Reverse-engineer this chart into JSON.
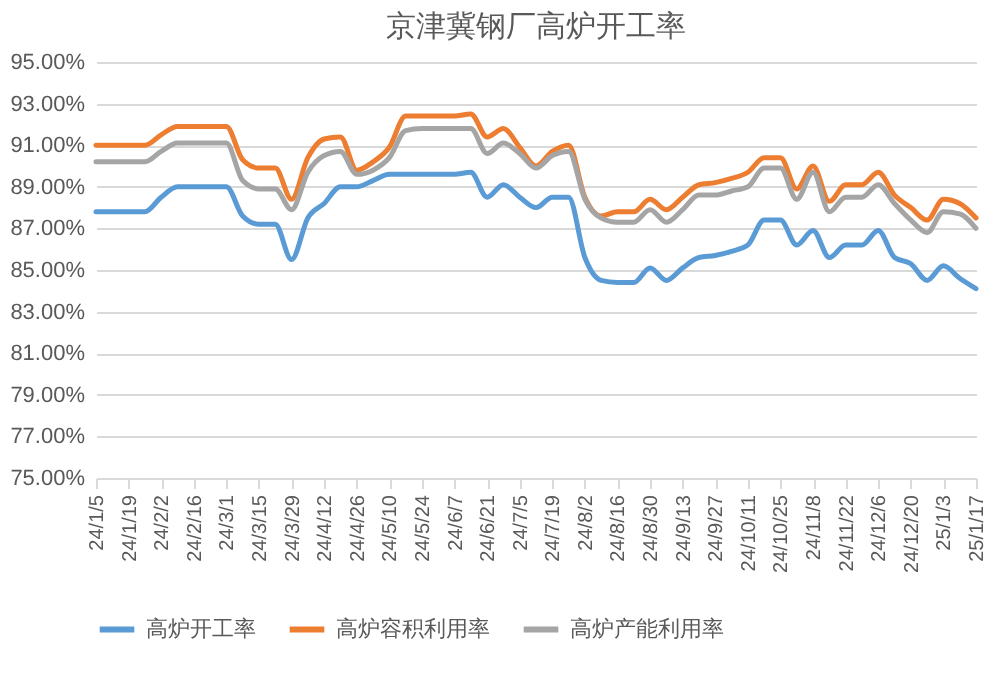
{
  "chart_data": {
    "type": "line",
    "title": "京津冀钢厂高炉开工率",
    "categories": [
      "24/1/5",
      null,
      "24/1/19",
      null,
      "24/2/2",
      null,
      "24/2/16",
      null,
      "24/3/1",
      null,
      "24/3/15",
      null,
      "24/3/29",
      null,
      "24/4/12",
      null,
      "24/4/26",
      null,
      "24/5/10",
      null,
      "24/5/24",
      null,
      "24/6/7",
      null,
      "24/6/21",
      null,
      "24/7/5",
      null,
      "24/7/19",
      null,
      "24/8/2",
      null,
      "24/8/16",
      null,
      "24/8/30",
      null,
      "24/9/13",
      null,
      "24/9/27",
      null,
      "24/10/11",
      null,
      "24/10/25",
      null,
      "24/11/8",
      null,
      "24/11/22",
      null,
      "24/12/6",
      null,
      "24/12/20",
      null,
      "25/1/3",
      null,
      "25/1/17"
    ],
    "series": [
      {
        "name": "高炉开工率",
        "color": "#5b9bd5",
        "values": [
          87.8,
          87.8,
          87.8,
          87.8,
          88.5,
          89.0,
          89.0,
          89.0,
          89.0,
          87.6,
          87.2,
          87.2,
          85.5,
          87.5,
          88.2,
          89.0,
          89.0,
          89.3,
          89.6,
          89.6,
          89.6,
          89.6,
          89.6,
          89.7,
          88.5,
          89.1,
          88.5,
          88.0,
          88.5,
          88.5,
          85.6,
          84.5,
          84.4,
          84.4,
          85.1,
          84.5,
          85.1,
          85.6,
          85.7,
          85.9,
          86.2,
          87.4,
          87.4,
          86.2,
          86.9,
          85.6,
          86.2,
          86.2,
          86.9,
          85.6,
          85.3,
          84.5,
          85.2,
          84.6,
          84.1
        ]
      },
      {
        "name": "高炉容积利用率",
        "color": "#ed7d31",
        "values": [
          91.0,
          91.0,
          91.0,
          91.0,
          91.5,
          91.9,
          91.9,
          91.9,
          91.9,
          90.3,
          89.9,
          89.9,
          88.4,
          90.4,
          91.3,
          91.4,
          89.8,
          90.2,
          90.9,
          92.4,
          92.4,
          92.4,
          92.4,
          92.5,
          91.4,
          91.8,
          90.9,
          90.0,
          90.7,
          91.0,
          88.5,
          87.6,
          87.8,
          87.8,
          88.4,
          87.9,
          88.5,
          89.1,
          89.2,
          89.4,
          89.7,
          90.4,
          90.4,
          88.9,
          90.0,
          88.3,
          89.1,
          89.1,
          89.7,
          88.6,
          88.0,
          87.4,
          88.4,
          88.2,
          87.5
        ]
      },
      {
        "name": "高炉产能利用率",
        "color": "#a5a5a5",
        "values": [
          90.2,
          90.2,
          90.2,
          90.2,
          90.7,
          91.1,
          91.1,
          91.1,
          91.1,
          89.3,
          88.9,
          88.9,
          87.9,
          89.7,
          90.5,
          90.7,
          89.6,
          89.8,
          90.4,
          91.7,
          91.8,
          91.8,
          91.8,
          91.8,
          90.6,
          91.1,
          90.6,
          89.9,
          90.5,
          90.7,
          88.4,
          87.5,
          87.3,
          87.3,
          87.9,
          87.3,
          87.9,
          88.6,
          88.6,
          88.8,
          89.0,
          89.9,
          89.9,
          88.4,
          89.7,
          87.8,
          88.5,
          88.5,
          89.1,
          88.2,
          87.4,
          86.8,
          87.8,
          87.7,
          87.0
        ]
      }
    ],
    "ylim": [
      75,
      95
    ],
    "yticks": [
      {
        "value": 75,
        "label": "75.00%"
      },
      {
        "value": 77,
        "label": "77.00%"
      },
      {
        "value": 79,
        "label": "79.00%"
      },
      {
        "value": 81,
        "label": "81.00%"
      },
      {
        "value": 83,
        "label": "83.00%"
      },
      {
        "value": 85,
        "label": "85.00%"
      },
      {
        "value": 87,
        "label": "87.00%"
      },
      {
        "value": 89,
        "label": "89.00%"
      },
      {
        "value": 91,
        "label": "91.00%"
      },
      {
        "value": 93,
        "label": "93.00%"
      },
      {
        "value": 95,
        "label": "95.00%"
      }
    ],
    "grid": "y",
    "legend": "bottom"
  }
}
